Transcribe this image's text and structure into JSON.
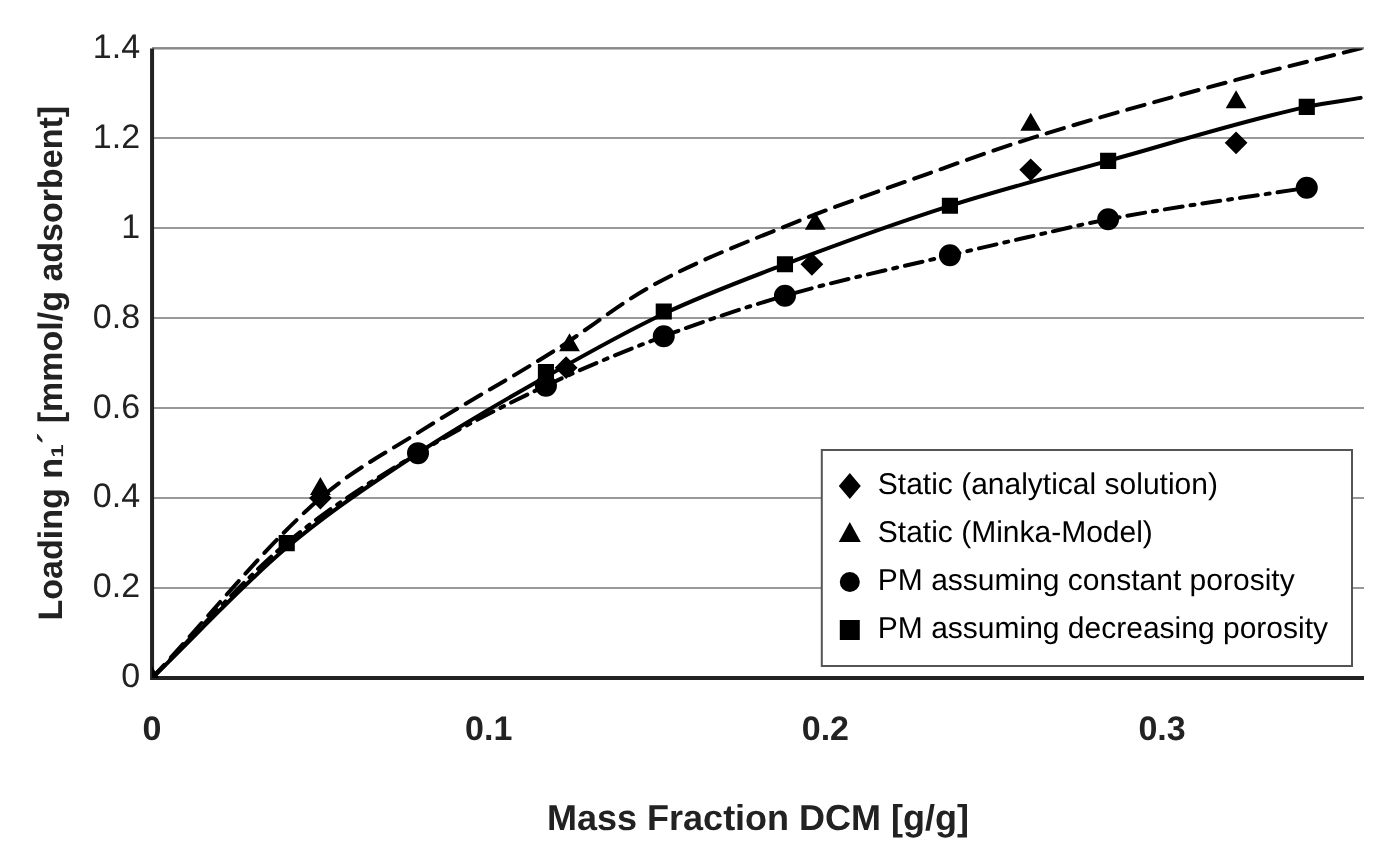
{
  "chart_data": {
    "type": "scatter",
    "xlabel": "Mass Fraction DCM [g/g]",
    "ylabel": "Loading n₁´ [mmol/g adsorbent]",
    "xlim": [
      0,
      0.36
    ],
    "xticks": [
      0,
      0.1,
      0.2,
      0.3
    ],
    "ylim": [
      0,
      1.4
    ],
    "yticks": [
      0,
      0.2,
      0.4,
      0.6,
      0.8,
      1,
      1.2,
      1.4
    ],
    "grid": "y",
    "legend": "bottom right",
    "series": [
      {
        "type": "line",
        "color": "#000000",
        "line_style": "dashed",
        "marker": "none",
        "x": [
          0,
          0.05,
          0.08,
          0.12,
          0.148,
          0.19,
          0.23,
          0.261,
          0.322,
          0.359
        ],
        "values": [
          0,
          0.4,
          0.55,
          0.73,
          0.87,
          1.01,
          1.12,
          1.2,
          1.33,
          1.4
        ]
      },
      {
        "type": "line",
        "color": "#000000",
        "line_style": "solid",
        "marker": "none",
        "x": [
          0,
          0.04,
          0.079,
          0.117,
          0.152,
          0.188,
          0.237,
          0.284,
          0.343,
          0.359
        ],
        "values": [
          0,
          0.29,
          0.5,
          0.67,
          0.81,
          0.92,
          1.05,
          1.15,
          1.27,
          1.29
        ]
      },
      {
        "type": "line",
        "color": "#000000",
        "line_style": "dotted",
        "marker": "none",
        "x": [
          0,
          0.04,
          0.079,
          0.117,
          0.152,
          0.188,
          0.237,
          0.26,
          0.284,
          0.343
        ],
        "values": [
          0,
          0.3,
          0.5,
          0.65,
          0.76,
          0.85,
          0.94,
          0.98,
          1.02,
          1.09
        ]
      },
      {
        "name": "Static (analytical solution)",
        "type": "scatter",
        "color": "#000000",
        "marker": "diamond",
        "x": [
          0.05,
          0.123,
          0.196,
          0.261,
          0.322
        ],
        "values": [
          0.4,
          0.69,
          0.92,
          1.13,
          1.19
        ]
      },
      {
        "name": "Static (Minka-Model)",
        "type": "scatter",
        "color": "#000000",
        "marker": "triangle",
        "x": [
          0,
          0.05,
          0.124,
          0.197,
          0.261,
          0.322
        ],
        "values": [
          0,
          0.42,
          0.74,
          1.01,
          1.23,
          1.28
        ]
      },
      {
        "name": "PM assuming constant porosity",
        "type": "scatter",
        "color": "#000000",
        "marker": "circle",
        "x": [
          0.079,
          0.117,
          0.152,
          0.188,
          0.237,
          0.284,
          0.343
        ],
        "values": [
          0.5,
          0.65,
          0.76,
          0.85,
          0.94,
          1.02,
          1.09
        ]
      },
      {
        "name": "PM assuming decreasing porosity",
        "type": "scatter",
        "color": "#000000",
        "marker": "square",
        "x": [
          0.04,
          0.079,
          0.117,
          0.152,
          0.188,
          0.237,
          0.284,
          0.343
        ],
        "values": [
          0.3,
          null,
          0.68,
          0.815,
          0.92,
          1.05,
          1.15,
          1.27
        ]
      }
    ]
  }
}
